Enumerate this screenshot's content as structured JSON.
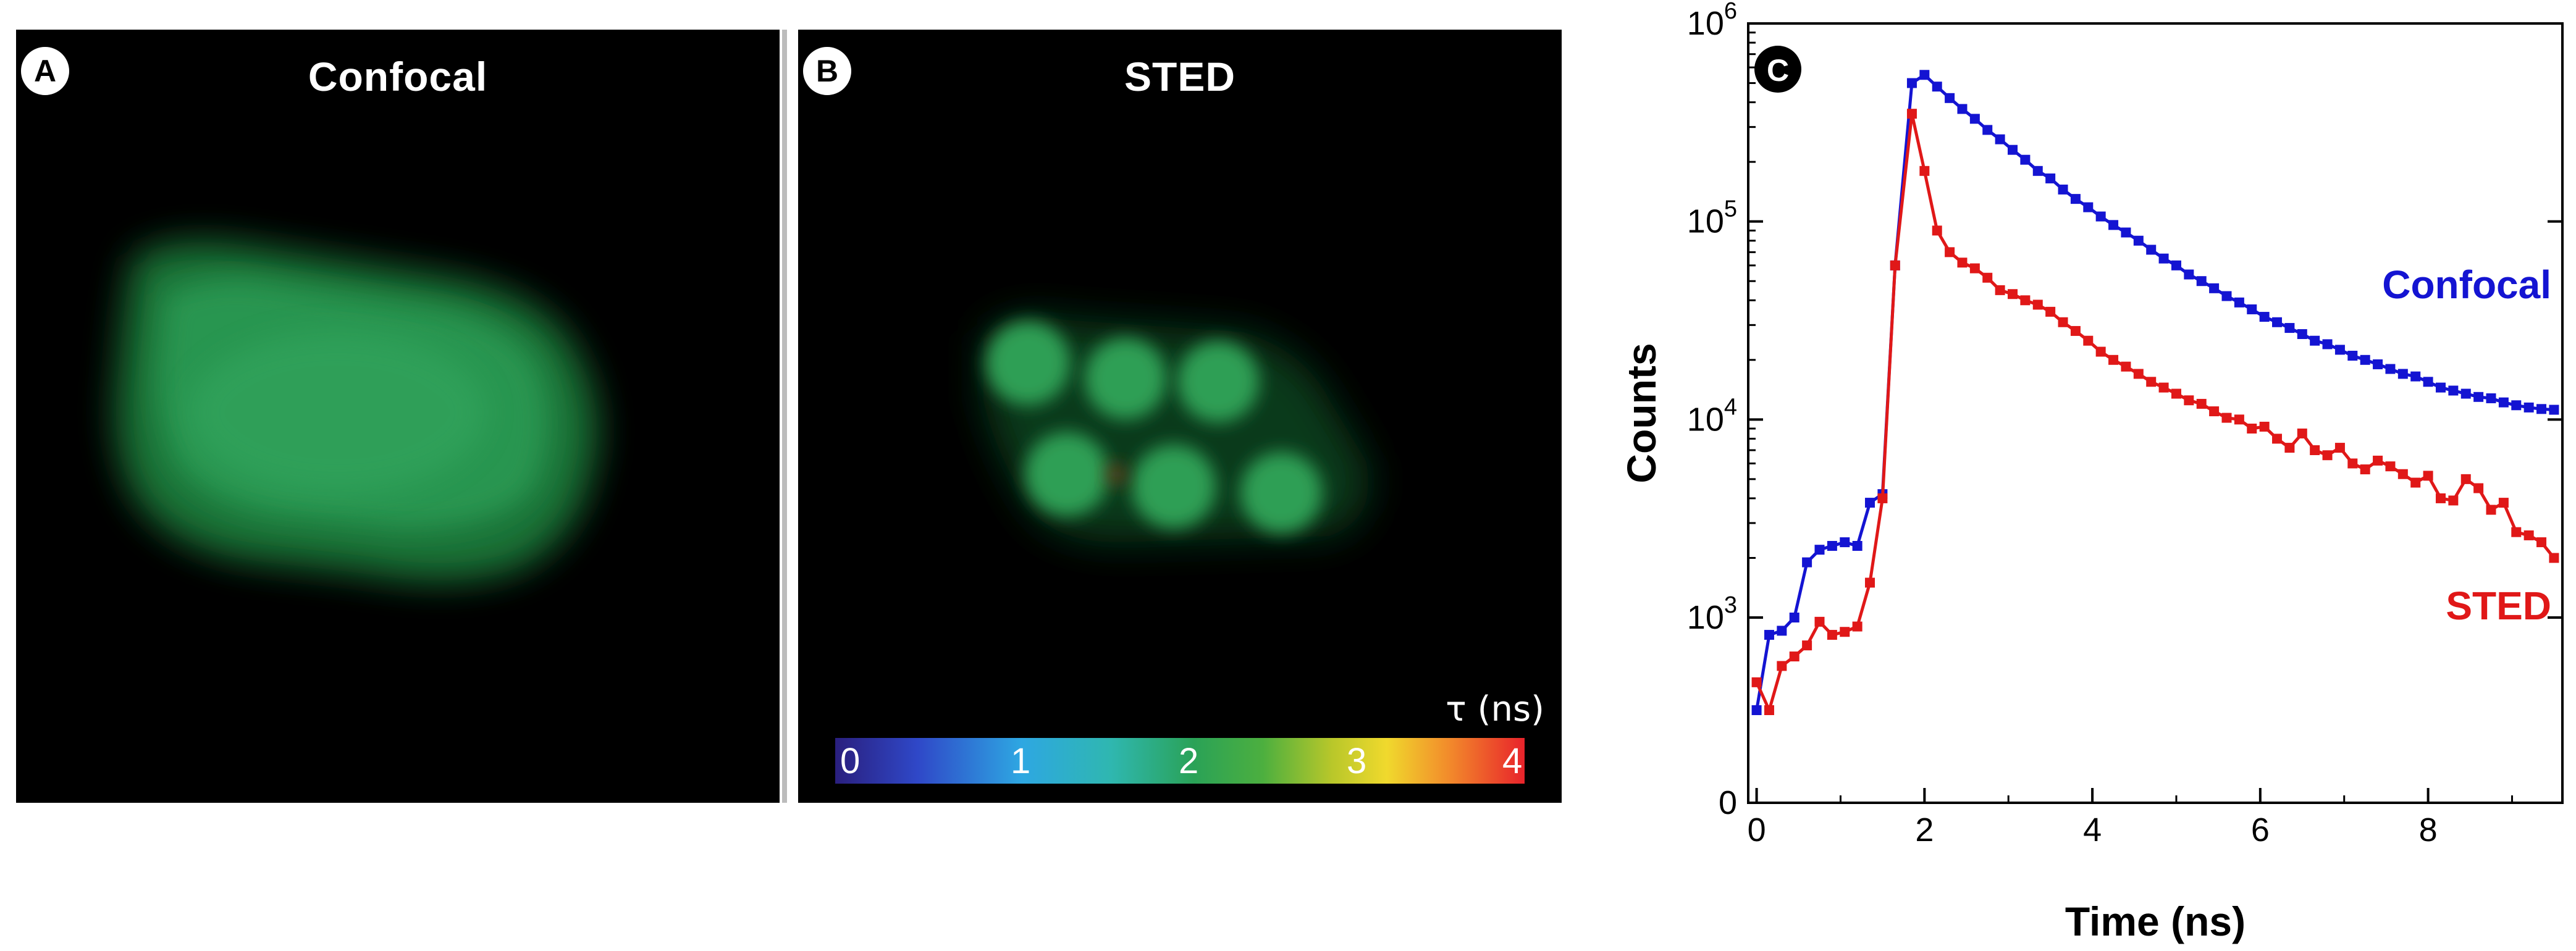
{
  "panels": {
    "a": {
      "letter": "A",
      "title": "Confocal"
    },
    "b": {
      "letter": "B",
      "title": "STED"
    }
  },
  "colorbar": {
    "label": "τ (ns)",
    "ticks": [
      "0",
      "1",
      "2",
      "3",
      "4"
    ],
    "range": [
      0,
      4
    ],
    "colors": [
      "#2a1f7e",
      "#2ea7e2",
      "#2aa257",
      "#f0d92d",
      "#e8232b"
    ]
  },
  "chart_data": {
    "type": "line",
    "panel_letter": "C",
    "xlabel": "Time (ns)",
    "ylabel": "Counts",
    "xlim": [
      -0.1,
      9.6
    ],
    "xticks": [
      0,
      2,
      4,
      6,
      8
    ],
    "xtick_labels": [
      "0",
      "2",
      "4",
      "6",
      "8"
    ],
    "yscale": "symlog",
    "ylim": [
      0,
      1000000
    ],
    "yticks": [
      0,
      1000,
      10000,
      100000,
      1000000
    ],
    "ytick_labels": [
      {
        "base": "0",
        "exp": ""
      },
      {
        "base": "10",
        "exp": "3"
      },
      {
        "base": "10",
        "exp": "4"
      },
      {
        "base": "10",
        "exp": "5"
      },
      {
        "base": "10",
        "exp": "6"
      }
    ],
    "series": [
      {
        "name": "Confocal",
        "color": "#1414d2",
        "x": [
          0,
          0.15,
          0.3,
          0.45,
          0.6,
          0.75,
          0.9,
          1.05,
          1.2,
          1.35,
          1.5,
          1.65,
          1.85,
          2.0,
          2.15,
          2.3,
          2.45,
          2.6,
          2.75,
          2.9,
          3.05,
          3.2,
          3.35,
          3.5,
          3.65,
          3.8,
          3.95,
          4.1,
          4.25,
          4.4,
          4.55,
          4.7,
          4.85,
          5.0,
          5.15,
          5.3,
          5.45,
          5.6,
          5.75,
          5.9,
          6.05,
          6.2,
          6.35,
          6.5,
          6.65,
          6.8,
          6.95,
          7.1,
          7.25,
          7.4,
          7.55,
          7.7,
          7.85,
          8.0,
          8.15,
          8.3,
          8.45,
          8.6,
          8.75,
          8.9,
          9.05,
          9.2,
          9.35,
          9.5
        ],
        "y": [
          100,
          650,
          720,
          1000,
          1900,
          2200,
          2300,
          2400,
          2300,
          3800,
          4200,
          60000,
          500000,
          550000,
          480000,
          420000,
          370000,
          330000,
          290000,
          260000,
          230000,
          205000,
          180000,
          165000,
          145000,
          130000,
          118000,
          106000,
          96000,
          88000,
          80000,
          72000,
          65000,
          60000,
          54000,
          50000,
          46000,
          42000,
          39000,
          36000,
          33000,
          31000,
          29000,
          27000,
          25000,
          24000,
          22500,
          21000,
          20000,
          19000,
          18000,
          17000,
          16500,
          15500,
          14500,
          14000,
          13500,
          13000,
          12800,
          12200,
          11800,
          11500,
          11300,
          11200
        ]
      },
      {
        "name": "STED",
        "color": "#e01818",
        "x": [
          0,
          0.15,
          0.3,
          0.45,
          0.6,
          0.75,
          0.9,
          1.05,
          1.2,
          1.35,
          1.5,
          1.65,
          1.85,
          2.0,
          2.15,
          2.3,
          2.45,
          2.6,
          2.75,
          2.9,
          3.05,
          3.2,
          3.35,
          3.5,
          3.65,
          3.8,
          3.95,
          4.1,
          4.25,
          4.4,
          4.55,
          4.7,
          4.85,
          5.0,
          5.15,
          5.3,
          5.45,
          5.6,
          5.75,
          5.9,
          6.05,
          6.2,
          6.35,
          6.5,
          6.65,
          6.8,
          6.95,
          7.1,
          7.25,
          7.4,
          7.55,
          7.7,
          7.85,
          8.0,
          8.15,
          8.3,
          8.45,
          8.6,
          8.75,
          8.9,
          9.05,
          9.2,
          9.35,
          9.5
        ],
        "y": [
          200,
          100,
          300,
          380,
          500,
          900,
          650,
          700,
          800,
          1500,
          4000,
          60000,
          350000,
          180000,
          90000,
          70000,
          62000,
          58000,
          52000,
          45000,
          43000,
          40000,
          38000,
          35000,
          31000,
          28000,
          25000,
          22000,
          20000,
          18500,
          17000,
          15500,
          14500,
          13500,
          12500,
          12000,
          11000,
          10200,
          10000,
          9000,
          9200,
          8000,
          7200,
          8500,
          7000,
          6600,
          7200,
          6000,
          5600,
          6200,
          5800,
          5300,
          4800,
          5200,
          4000,
          3900,
          5000,
          4500,
          3500,
          3800,
          2700,
          2600,
          2400,
          2000
        ]
      }
    ],
    "legend": [
      {
        "label": "Confocal",
        "color": "#1414d2"
      },
      {
        "label": "STED",
        "color": "#e01818"
      }
    ]
  }
}
